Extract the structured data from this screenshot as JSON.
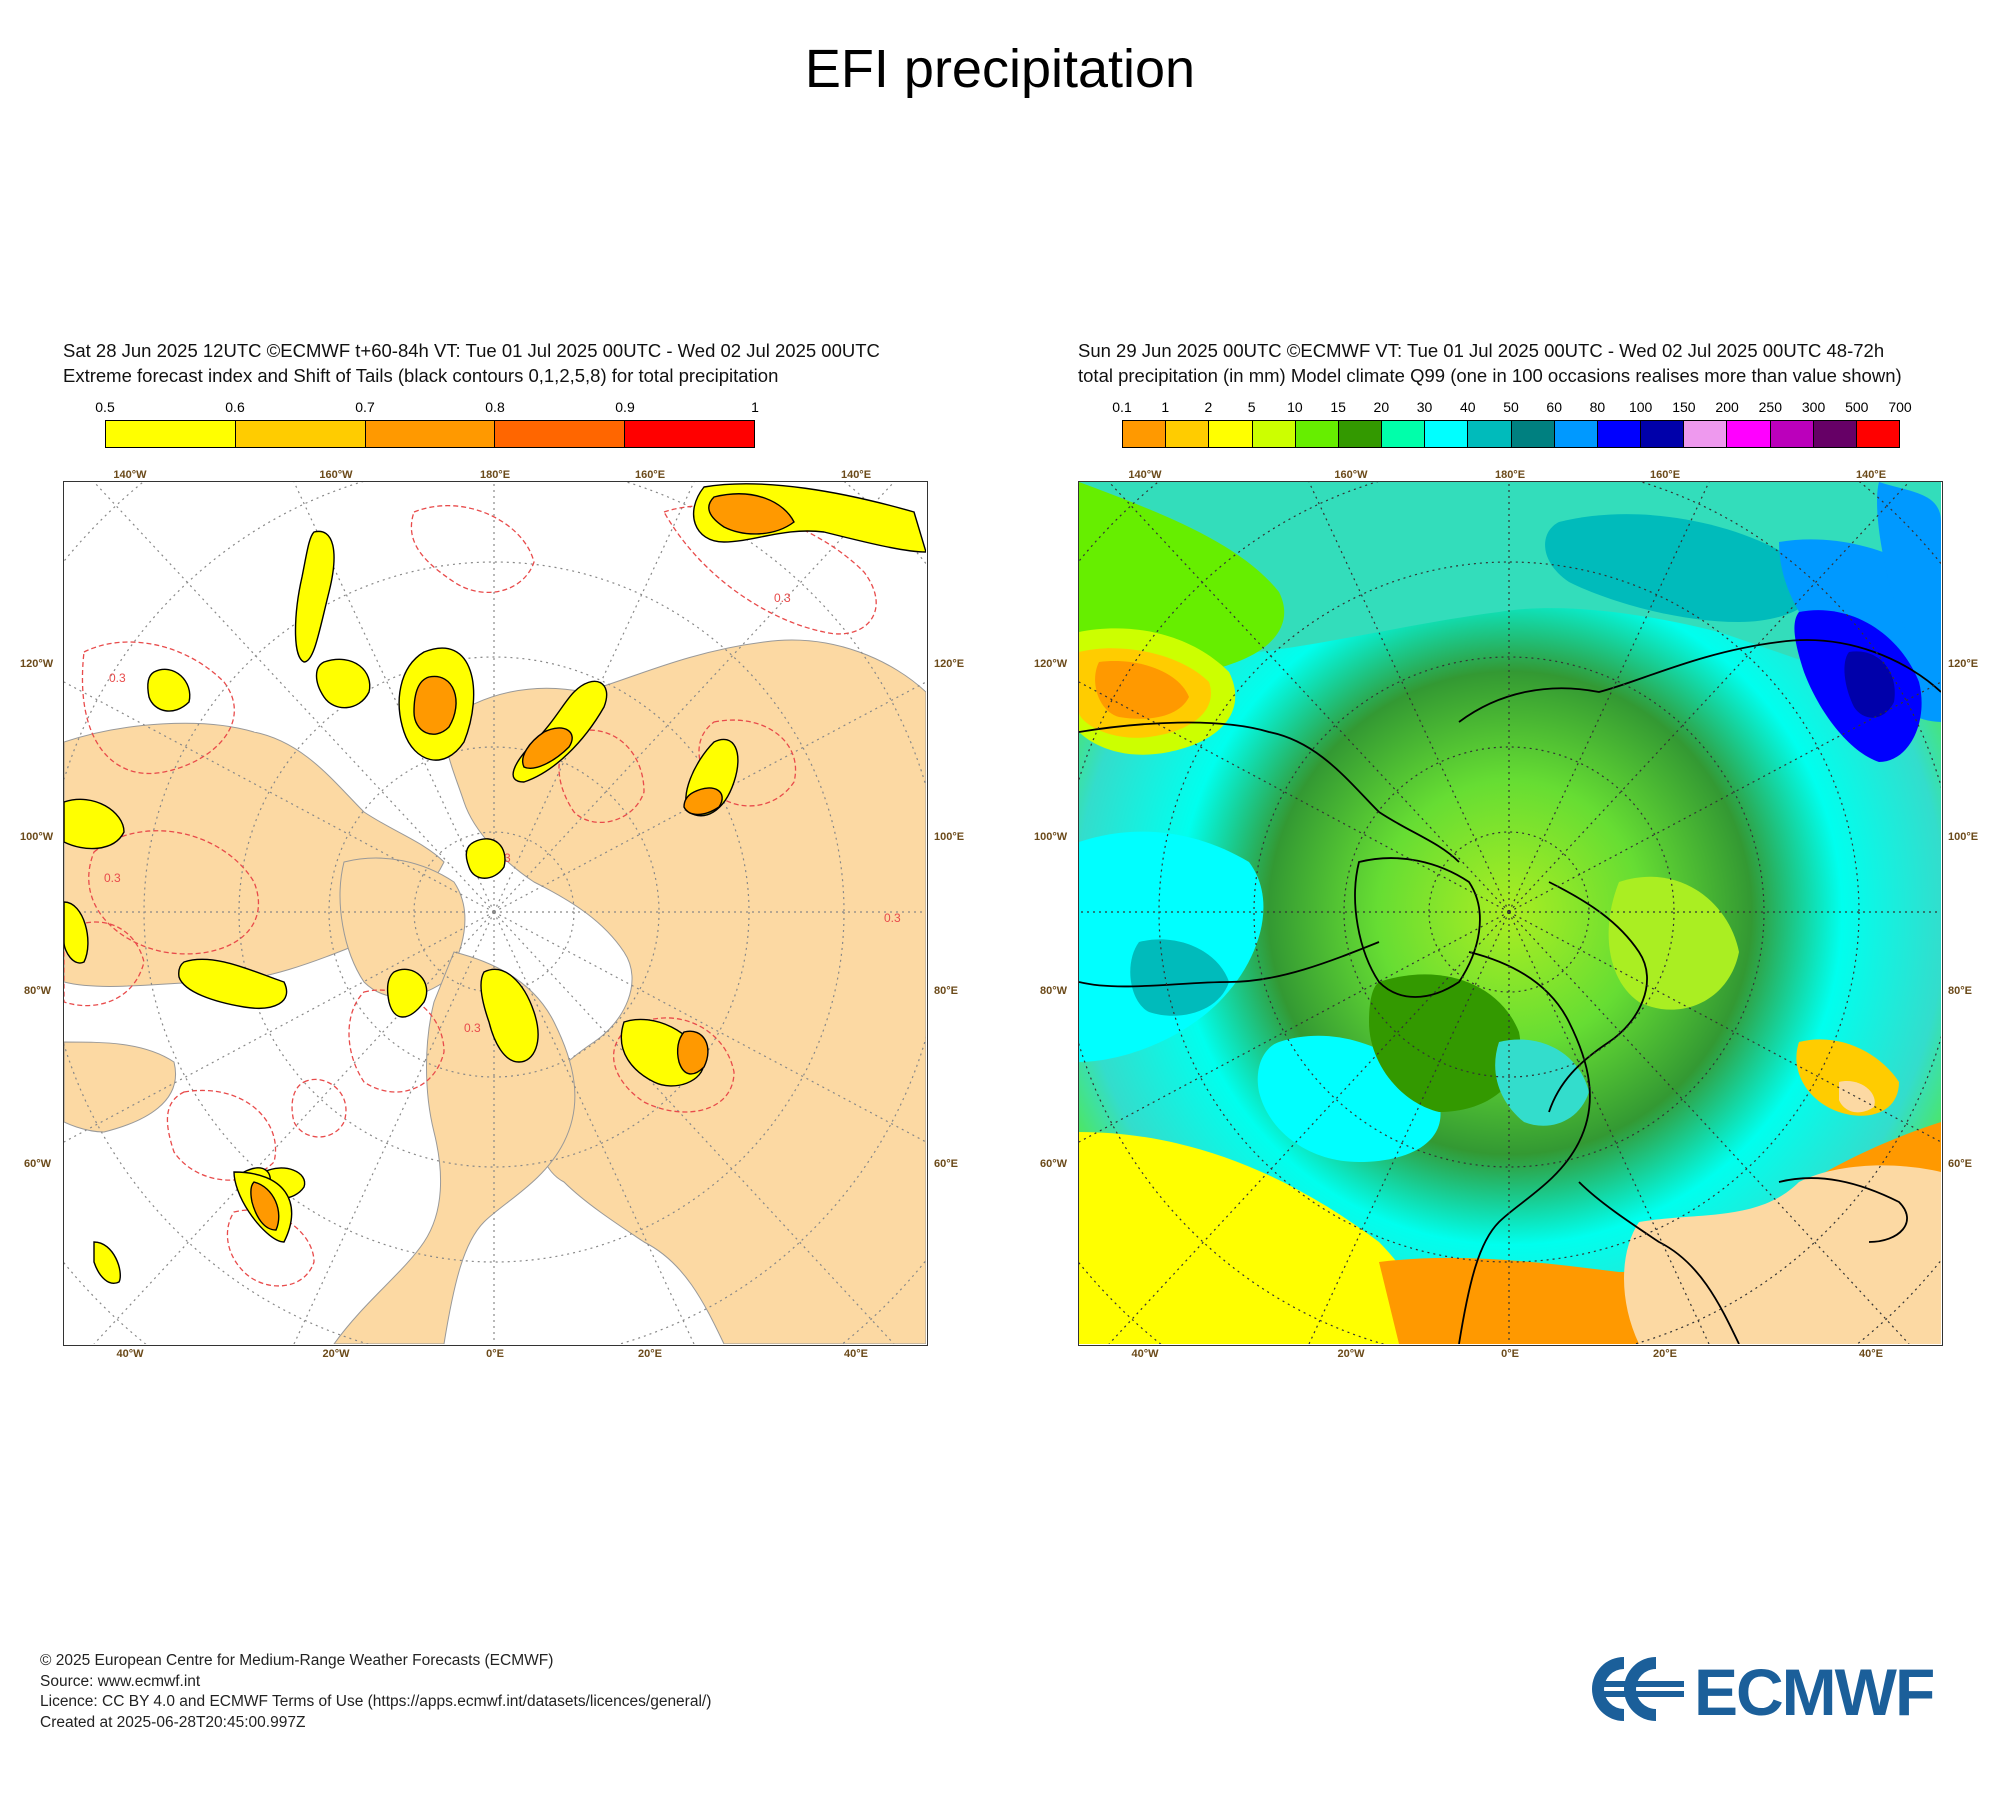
{
  "page": {
    "title": "EFI precipitation"
  },
  "left_panel": {
    "header_line1": "Sat 28 Jun 2025 12UTC ©ECMWF t+60-84h  VT: Tue 01 Jul 2025 00UTC - Wed 02 Jul 2025 00UTC",
    "header_line2": "Extreme forecast index and Shift of Tails (black contours 0,1,2,5,8) for total precipitation",
    "colorbar": {
      "labels": [
        "0.5",
        "0.6",
        "0.7",
        "0.8",
        "0.9",
        "1"
      ],
      "colors": [
        "#ffff00",
        "#ffcc00",
        "#ff9900",
        "#ff6600",
        "#ff0000"
      ]
    },
    "lon_top": [
      "140°W",
      "160°W",
      "180°E",
      "160°E",
      "140°E"
    ],
    "lon_bottom": [
      "40°W",
      "20°W",
      "0°E",
      "20°E",
      "40°E"
    ],
    "lat_left": [
      "120°W",
      "100°W",
      "80°W",
      "60°W"
    ],
    "lat_right": [
      "120°E",
      "100°E",
      "80°E",
      "60°E"
    ],
    "contour_label": "0.3",
    "colors": {
      "land": "#fcd9a3",
      "sea": "#ffffff",
      "contour": "#e84b4b"
    }
  },
  "right_panel": {
    "header_line1": "Sun 29 Jun 2025 00UTC ©ECMWF VT: Tue 01 Jul 2025 00UTC - Wed 02 Jul 2025 00UTC   48-72h",
    "header_line2": "total precipitation (in mm)  Model climate Q99 (one in 100 occasions realises more than value shown)",
    "colorbar": {
      "labels": [
        "0.1",
        "1",
        "2",
        "5",
        "10",
        "15",
        "20",
        "30",
        "40",
        "50",
        "60",
        "80",
        "100",
        "150",
        "200",
        "250",
        "300",
        "500",
        "700"
      ],
      "colors": [
        "#ff9900",
        "#ffcc00",
        "#ffff00",
        "#ccff00",
        "#66ee00",
        "#339900",
        "#00ffaa",
        "#00ffff",
        "#00bbbb",
        "#008080",
        "#0099ff",
        "#0000ff",
        "#0000aa",
        "#ee99ee",
        "#ff00ff",
        "#bb00bb",
        "#660066",
        "#ff0000"
      ]
    },
    "lon_top": [
      "140°W",
      "160°W",
      "180°E",
      "160°E",
      "140°E"
    ],
    "lon_bottom": [
      "40°W",
      "20°W",
      "0°E",
      "20°E",
      "40°E"
    ],
    "lat_left": [
      "120°W",
      "100°W",
      "80°W",
      "60°W"
    ],
    "lat_right": [
      "120°E",
      "100°E",
      "80°E",
      "60°E"
    ]
  },
  "footer": {
    "copyright": "© 2025 European Centre for Medium-Range Weather Forecasts (ECMWF)",
    "source": "Source: www.ecmwf.int",
    "licence": "Licence: CC BY 4.0 and ECMWF Terms of Use (https://apps.ecmwf.int/datasets/licences/general/)",
    "created": "Created at 2025-06-28T20:45:00.997Z"
  },
  "logo": {
    "text": "ECMWF",
    "color": "#1b5f9a"
  }
}
